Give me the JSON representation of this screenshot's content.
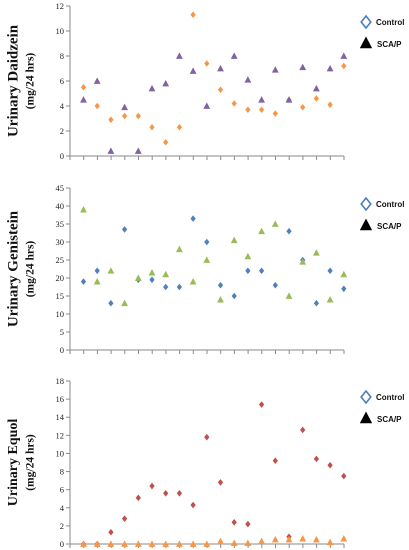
{
  "chart_data": [
    {
      "type": "scatter",
      "ylabel": "Urinary Daidzein",
      "ylabel_unit": "(mg/24 hrs)",
      "ylim": [
        0,
        12
      ],
      "yticks": [
        0,
        2,
        4,
        6,
        8,
        10,
        12
      ],
      "x_ticks_labeled": false,
      "legend_position": "top-right",
      "legend": [
        {
          "name": "Control",
          "marker": "diamond-outline",
          "color": "#4a7ebb"
        },
        {
          "name": "SCA/P",
          "marker": "triangle-filled",
          "color": "#000000"
        }
      ],
      "series": [
        {
          "name": "orange",
          "color": "#f79646",
          "marker": "diamond",
          "values": [
            5.5,
            4.0,
            2.9,
            3.2,
            3.2,
            2.3,
            1.1,
            2.3,
            11.3,
            7.4,
            5.3,
            4.2,
            3.7,
            3.7,
            3.4,
            4.5,
            3.9,
            4.6,
            4.1,
            7.2
          ]
        },
        {
          "name": "purple",
          "color": "#8064a2",
          "marker": "triangle",
          "values": [
            4.5,
            6.0,
            0.4,
            3.9,
            0.4,
            5.4,
            5.8,
            8.0,
            6.8,
            4.0,
            7.0,
            8.0,
            6.1,
            4.5,
            6.9,
            4.5,
            7.1,
            5.4,
            7.0,
            8.0
          ]
        }
      ]
    },
    {
      "type": "scatter",
      "ylabel": "Urinary Genistein",
      "ylabel_unit": "(mg/24 hrs)",
      "ylim": [
        0,
        45
      ],
      "yticks": [
        0,
        5,
        10,
        15,
        20,
        25,
        30,
        35,
        40,
        45
      ],
      "x_ticks_labeled": false,
      "legend_position": "top-right",
      "legend": [
        {
          "name": "Control",
          "marker": "diamond-outline",
          "color": "#4a7ebb"
        },
        {
          "name": "SCA/P",
          "marker": "triangle-filled",
          "color": "#000000"
        }
      ],
      "series": [
        {
          "name": "blue",
          "color": "#4f81bd",
          "marker": "diamond",
          "values": [
            19.0,
            22.0,
            13.0,
            33.5,
            19.5,
            19.5,
            17.5,
            17.5,
            36.5,
            30.0,
            18.0,
            15.0,
            22.0,
            22.0,
            18.0,
            33.0,
            25.0,
            13.0,
            22.0,
            17.0
          ]
        },
        {
          "name": "green",
          "color": "#9bbb59",
          "marker": "triangle",
          "values": [
            39.0,
            19.0,
            22.0,
            13.0,
            20.0,
            21.5,
            21.0,
            28.0,
            19.0,
            25.0,
            14.0,
            30.5,
            26.0,
            33.0,
            35.0,
            15.0,
            24.5,
            27.0,
            14.0,
            21.0
          ]
        }
      ]
    },
    {
      "type": "scatter",
      "ylabel": "Urinary Equol",
      "ylabel_unit": "(mg/24 hrs)",
      "ylim": [
        0,
        18
      ],
      "yticks": [
        0,
        2,
        4,
        6,
        8,
        10,
        12,
        14,
        16,
        18
      ],
      "x_ticks_labeled": false,
      "legend_position": "top-right",
      "legend": [
        {
          "name": "Control",
          "marker": "diamond-outline",
          "color": "#4a7ebb"
        },
        {
          "name": "SCA/P",
          "marker": "triangle-filled",
          "color": "#000000"
        }
      ],
      "series": [
        {
          "name": "red",
          "color": "#c0504d",
          "marker": "diamond",
          "values": [
            0.0,
            0.0,
            1.3,
            2.8,
            5.1,
            6.4,
            5.6,
            5.6,
            4.3,
            11.8,
            6.8,
            2.4,
            2.2,
            15.4,
            9.2,
            0.8,
            12.6,
            9.4,
            8.7,
            7.5
          ]
        },
        {
          "name": "orange",
          "color": "#f79646",
          "marker": "triangle",
          "values": [
            0.0,
            0.0,
            0.0,
            0.0,
            0.0,
            0.0,
            0.0,
            0.0,
            0.0,
            0.0,
            0.3,
            0.1,
            0.1,
            0.3,
            0.5,
            0.5,
            0.6,
            0.5,
            0.2,
            0.6
          ]
        }
      ]
    }
  ]
}
